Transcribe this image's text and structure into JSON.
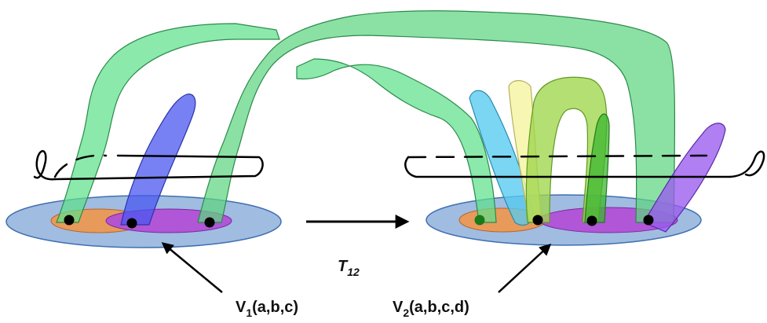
{
  "labels": {
    "v1": {
      "main": "V",
      "sub": "1",
      "args": "(a,b,c)"
    },
    "v2": {
      "main": "V",
      "sub": "2",
      "args": "(a,b,c,d)"
    },
    "transition": {
      "main": "T",
      "sub": "12"
    }
  },
  "colors": {
    "outer_disk": "#8fb0dc",
    "region_orange": "#e89a5a",
    "region_purple": "#b150d6",
    "green_band": "#5ed67f",
    "blue_band": "#4a57f0",
    "cyan_band": "#56cbf0",
    "yellow_band": "#f6f4a6",
    "olive_band": "#9fd64c",
    "dark_green_band": "#3bb72e",
    "violet_band": "#9a5bee",
    "puncture": "#000000",
    "curve": "#000000"
  }
}
